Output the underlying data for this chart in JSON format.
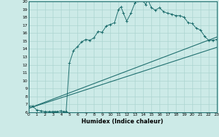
{
  "title": "",
  "xlabel": "Humidex (Indice chaleur)",
  "xlim": [
    0,
    23
  ],
  "ylim": [
    6,
    20
  ],
  "xticks": [
    0,
    1,
    2,
    3,
    4,
    5,
    6,
    7,
    8,
    9,
    10,
    11,
    12,
    13,
    14,
    15,
    16,
    17,
    18,
    19,
    20,
    21,
    22,
    23
  ],
  "yticks": [
    6,
    7,
    8,
    9,
    10,
    11,
    12,
    13,
    14,
    15,
    16,
    17,
    18,
    19,
    20
  ],
  "bg_color": "#cceae7",
  "grid_color": "#aad4d0",
  "line_color": "#1a6b6b",
  "line1_x": [
    0,
    0.5,
    1,
    1.5,
    2,
    2.5,
    3,
    3.2,
    3.5,
    4,
    4.3,
    4.6,
    5,
    5.5,
    6,
    6.5,
    7,
    7.5,
    8,
    8.5,
    9,
    9.5,
    10,
    10.5,
    11,
    11.3,
    11.6,
    12,
    12.5,
    13,
    13.3,
    13.6,
    14,
    14.3,
    14.6,
    15,
    15.5,
    16,
    16.5,
    17,
    17.5,
    18,
    18.5,
    19,
    19.5,
    20,
    20.5,
    21,
    21.5,
    22,
    22.5,
    23
  ],
  "line1_y": [
    6.8,
    6.8,
    6.3,
    6.2,
    6.1,
    6.1,
    6.1,
    6.1,
    6.1,
    6.2,
    6.1,
    6.1,
    12.2,
    13.8,
    14.3,
    14.9,
    15.2,
    15.1,
    15.4,
    16.2,
    16.1,
    16.9,
    17.1,
    17.3,
    19.0,
    19.3,
    18.5,
    17.5,
    18.5,
    19.8,
    20.1,
    20.2,
    20.1,
    19.6,
    20.2,
    19.2,
    18.9,
    19.2,
    18.7,
    18.5,
    18.4,
    18.2,
    18.2,
    18.0,
    17.3,
    17.2,
    16.6,
    16.4,
    15.6,
    15.1,
    15.1,
    15.2
  ],
  "line2_x": [
    0,
    23
  ],
  "line2_y": [
    6.5,
    15.5
  ],
  "line3_x": [
    0,
    23
  ],
  "line3_y": [
    6.5,
    14.2
  ],
  "marker": "+"
}
